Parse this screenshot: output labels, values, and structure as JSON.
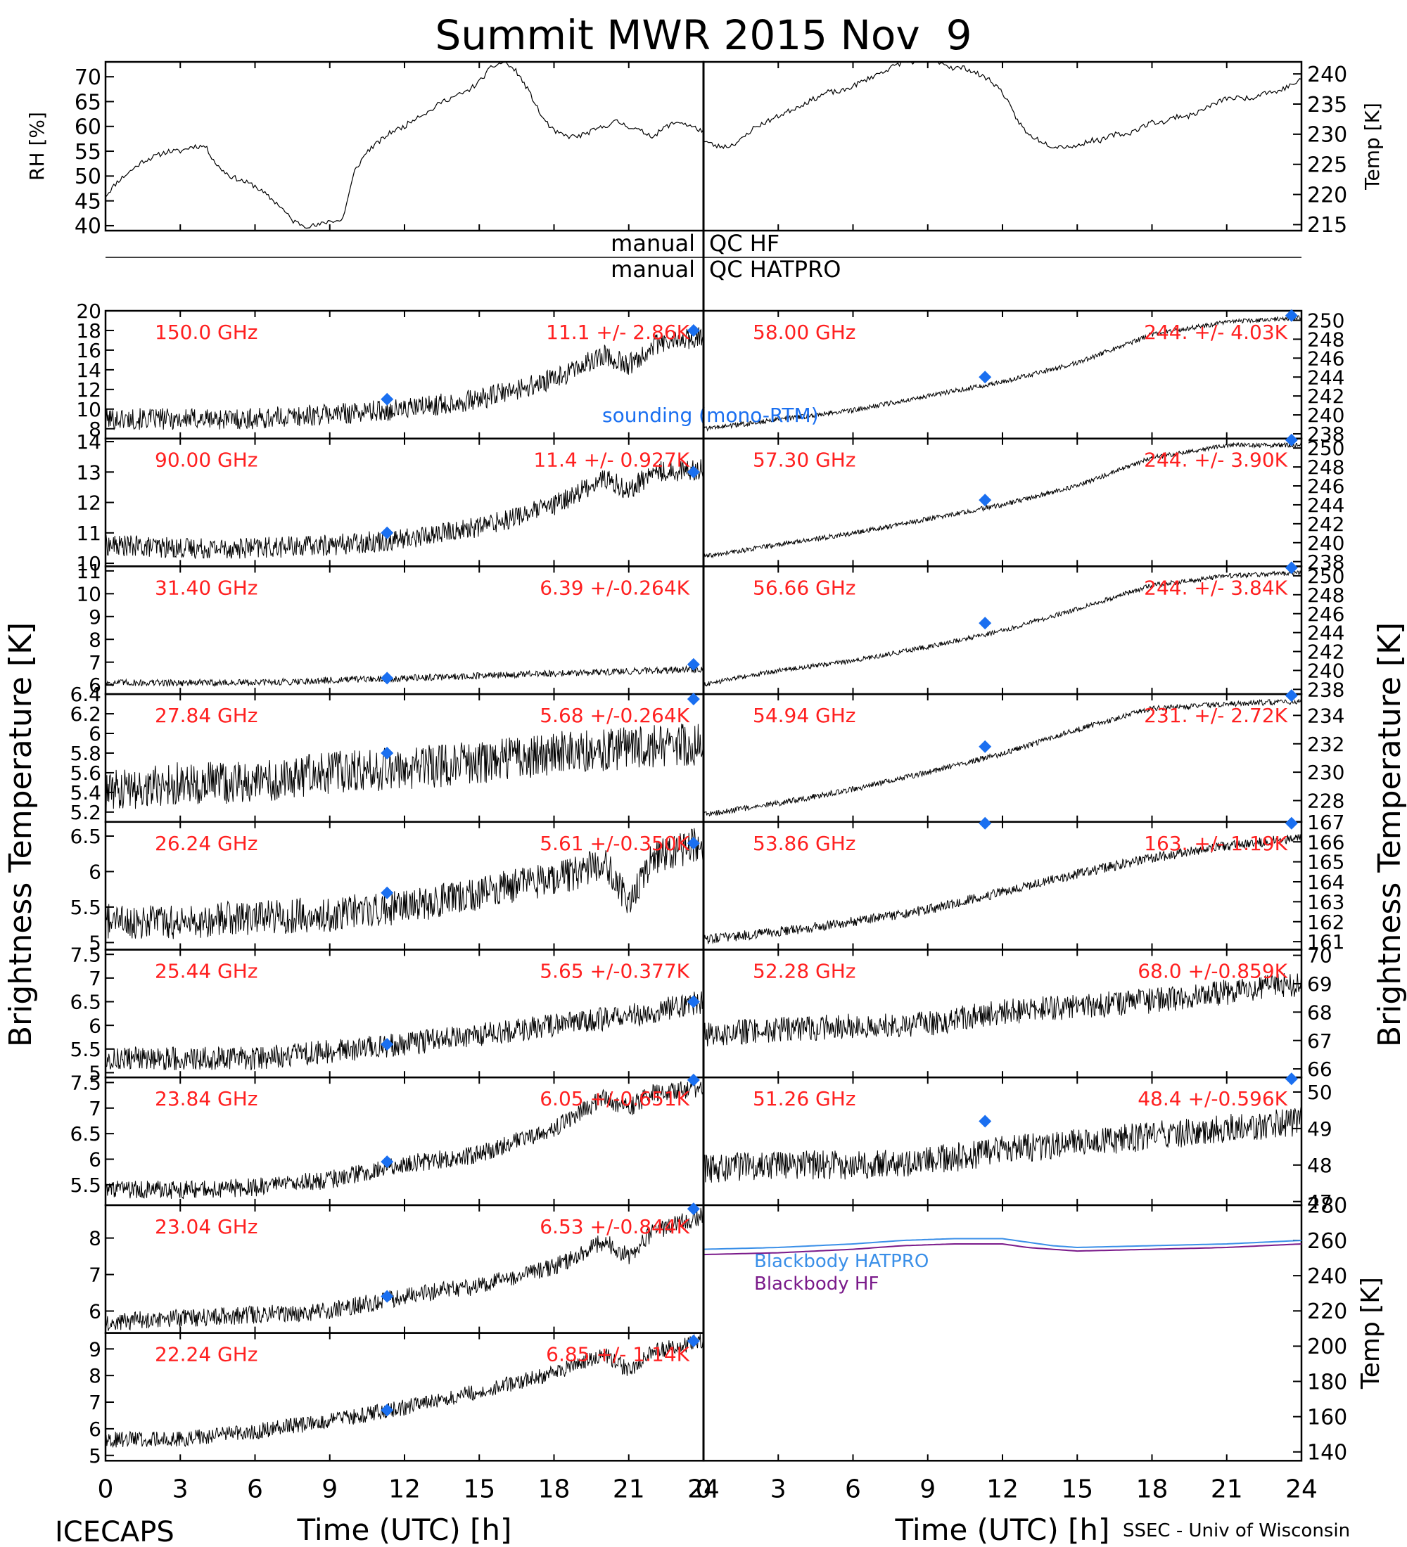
{
  "figure": {
    "title": "Summit MWR 2015 Nov  9",
    "footer_left": "ICECAPS",
    "footer_right": "SSEC - Univ of Wisconsin",
    "xlabel": "Time (UTC) [h]",
    "left_ylabel": "Brightness Temperature [K]",
    "right_ylabel": "Brightness Temperature [K]",
    "x_ticks": [
      "0",
      "3",
      "6",
      "9",
      "12",
      "15",
      "18",
      "21",
      "24"
    ],
    "qc_label_manual": "manual",
    "qc_hf_label": "QC HF",
    "qc_hatpro_label": "QC HATPRO",
    "sounding_label": "sounding (mono-RTM)",
    "colors": {
      "annotation": "#ff2020",
      "sounding": "#1a6ff0",
      "blackbody_hatpro": "#3a8fe8",
      "blackbody_hf": "#7a1a8a",
      "data": "#000000"
    }
  },
  "chart_data": [
    {
      "id": "rh",
      "type": "line",
      "ylabel": "RH [%]",
      "ylim": [
        39,
        73
      ],
      "yticks": [
        40,
        45,
        50,
        55,
        60,
        65,
        70
      ],
      "xlim": [
        0,
        24
      ],
      "series": [
        {
          "x": [
            0,
            0.5,
            1,
            1.5,
            2,
            2.5,
            3,
            3.5,
            4,
            4.5,
            5,
            5.5,
            6,
            6.5,
            7,
            7.5,
            8,
            8.5,
            9,
            9.5,
            10,
            10.5,
            11,
            11.5,
            12,
            12.5,
            13,
            13.5,
            14,
            14.5,
            15,
            15.5,
            16,
            16.5,
            17,
            17.5,
            18,
            18.5,
            19,
            19.5,
            20,
            20.5,
            21,
            21.5,
            22,
            22.5,
            23,
            23.5,
            24
          ],
          "values": [
            46,
            49,
            51,
            53,
            54,
            55,
            55,
            56,
            56,
            52,
            50,
            49,
            48,
            46,
            44,
            41,
            40,
            40,
            41,
            41,
            51,
            55,
            57,
            59,
            60,
            62,
            63,
            65,
            66,
            67,
            69,
            72,
            73,
            71,
            67,
            62,
            59,
            58,
            58,
            59,
            60,
            61,
            60,
            59,
            58,
            60,
            61,
            60,
            59
          ]
        }
      ]
    },
    {
      "id": "temp",
      "type": "line",
      "ylabel": "Temp [K]",
      "ylim": [
        214,
        242
      ],
      "yticks": [
        215,
        220,
        225,
        230,
        235,
        240
      ],
      "xlim": [
        0,
        24
      ],
      "series": [
        {
          "x": [
            0,
            0.5,
            1,
            1.5,
            2,
            2.5,
            3,
            3.5,
            4,
            4.5,
            5,
            5.5,
            6,
            6.5,
            7,
            7.5,
            8,
            8.5,
            9,
            9.5,
            10,
            10.5,
            11,
            11.5,
            12,
            12.5,
            13,
            13.5,
            14,
            14.5,
            15,
            15.5,
            16,
            16.5,
            17,
            17.5,
            18,
            18.5,
            19,
            19.5,
            20,
            20.5,
            21,
            21.5,
            22,
            22.5,
            23,
            23.5,
            24
          ],
          "values": [
            229,
            228,
            228,
            229,
            231,
            232,
            233,
            234,
            235,
            236,
            237,
            237,
            238,
            239,
            240,
            241,
            242,
            242,
            242,
            242,
            241,
            241,
            240,
            239,
            237,
            233,
            230,
            229,
            228,
            228,
            228,
            229,
            229,
            230,
            230,
            231,
            232,
            232,
            233,
            233,
            234,
            235,
            236,
            236,
            236,
            237,
            237,
            238,
            239
          ]
        }
      ]
    },
    {
      "id": "ch150",
      "type": "line",
      "label": "150.0 GHz",
      "stats": "11.1 +/- 2.86K",
      "ylim": [
        7,
        20
      ],
      "yticks": [
        8,
        10,
        12,
        14,
        16,
        18,
        20
      ],
      "xlim": [
        0,
        24
      ],
      "noise": 1.1,
      "x": [
        0,
        3,
        6,
        9,
        12,
        15,
        18,
        20,
        21,
        22,
        24
      ],
      "values": [
        9,
        9,
        9,
        9.5,
        10,
        11,
        13,
        15.5,
        14.5,
        16.5,
        17.5
      ],
      "sounding": [
        [
          11.3,
          11
        ],
        [
          23.6,
          18
        ]
      ]
    },
    {
      "id": "ch90",
      "type": "line",
      "label": "90.00 GHz",
      "stats": "11.4 +/- 0.927K",
      "ylim": [
        9.9,
        14.1
      ],
      "yticks": [
        10,
        11,
        12,
        13,
        14
      ],
      "xlim": [
        0,
        24
      ],
      "noise": 0.35,
      "x": [
        0,
        3,
        6,
        9,
        12,
        15,
        18,
        20,
        21,
        22,
        24
      ],
      "values": [
        10.6,
        10.5,
        10.5,
        10.6,
        10.8,
        11.2,
        11.9,
        12.8,
        12.4,
        13,
        13.1
      ],
      "sounding": [
        [
          11.3,
          11
        ],
        [
          23.6,
          13
        ]
      ]
    },
    {
      "id": "ch31",
      "type": "line",
      "label": "31.40 GHz",
      "stats": "6.39 +/-0.264K",
      "ylim": [
        5.6,
        11.2
      ],
      "yticks": [
        6,
        7,
        8,
        9,
        10,
        11
      ],
      "xlim": [
        0,
        24
      ],
      "noise": 0.15,
      "x": [
        0,
        6,
        12,
        18,
        21,
        24
      ],
      "values": [
        6.1,
        6.1,
        6.3,
        6.5,
        6.6,
        6.7
      ],
      "sounding": [
        [
          11.3,
          6.3
        ],
        [
          23.6,
          6.9
        ]
      ]
    },
    {
      "id": "ch27",
      "type": "line",
      "label": "27.84 GHz",
      "stats": "5.68 +/-0.264K",
      "ylim": [
        5.1,
        6.4
      ],
      "yticks": [
        5.2,
        5.4,
        5.6,
        5.8,
        6.0,
        6.2,
        6.4
      ],
      "xlim": [
        0,
        24
      ],
      "noise": 0.22,
      "x": [
        0,
        3,
        6,
        9,
        12,
        15,
        18,
        21,
        24
      ],
      "values": [
        5.4,
        5.5,
        5.5,
        5.6,
        5.65,
        5.7,
        5.8,
        5.85,
        5.9
      ],
      "sounding": [
        [
          11.3,
          5.8
        ],
        [
          23.6,
          6.35
        ]
      ]
    },
    {
      "id": "ch26",
      "type": "line",
      "label": "26.24 GHz",
      "stats": "5.61 +/-0.350K",
      "ylim": [
        4.9,
        6.7
      ],
      "yticks": [
        5.0,
        5.5,
        6.0,
        6.5
      ],
      "xlim": [
        0,
        24
      ],
      "noise": 0.25,
      "x": [
        0,
        3,
        6,
        9,
        12,
        15,
        18,
        20,
        21,
        22,
        24
      ],
      "values": [
        5.3,
        5.3,
        5.35,
        5.4,
        5.5,
        5.7,
        5.9,
        6.1,
        5.6,
        6.2,
        6.4
      ],
      "sounding": [
        [
          11.3,
          5.7
        ],
        [
          23.6,
          6.4
        ]
      ]
    },
    {
      "id": "ch25",
      "type": "line",
      "label": "25.44 GHz",
      "stats": "5.65 +/-0.377K",
      "ylim": [
        4.9,
        7.6
      ],
      "yticks": [
        5.0,
        5.5,
        6.0,
        6.5,
        7.0,
        7.5
      ],
      "xlim": [
        0,
        24
      ],
      "noise": 0.25,
      "x": [
        0,
        3,
        6,
        9,
        12,
        15,
        18,
        21,
        24
      ],
      "values": [
        5.3,
        5.3,
        5.3,
        5.45,
        5.6,
        5.8,
        6.0,
        6.2,
        6.5
      ],
      "sounding": [
        [
          11.3,
          5.6
        ],
        [
          23.6,
          6.5
        ]
      ]
    },
    {
      "id": "ch23_84",
      "type": "line",
      "label": "23.84 GHz",
      "stats": "6.05 +/-0.651K",
      "ylim": [
        5.1,
        7.6
      ],
      "yticks": [
        5.5,
        6.0,
        6.5,
        7.0,
        7.5
      ],
      "xlim": [
        0,
        24
      ],
      "noise": 0.18,
      "x": [
        0,
        3,
        6,
        9,
        12,
        15,
        18,
        20,
        21,
        22,
        24
      ],
      "values": [
        5.4,
        5.4,
        5.45,
        5.6,
        5.9,
        6.1,
        6.6,
        7.2,
        7.0,
        7.3,
        7.4
      ],
      "sounding": [
        [
          11.3,
          5.95
        ],
        [
          23.6,
          7.55
        ]
      ]
    },
    {
      "id": "ch23_04",
      "type": "line",
      "label": "23.04 GHz",
      "stats": "6.53 +/-0.844K",
      "ylim": [
        5.4,
        8.9
      ],
      "yticks": [
        6,
        7,
        8
      ],
      "xlim": [
        0,
        24
      ],
      "noise": 0.25,
      "x": [
        0,
        3,
        6,
        9,
        12,
        15,
        18,
        20,
        21,
        22,
        24
      ],
      "values": [
        5.7,
        5.8,
        5.9,
        6.0,
        6.4,
        6.7,
        7.2,
        7.9,
        7.5,
        8.2,
        8.6
      ],
      "sounding": [
        [
          11.3,
          6.4
        ],
        [
          23.6,
          8.8
        ]
      ]
    },
    {
      "id": "ch22",
      "type": "line",
      "label": "22.24 GHz",
      "stats": "6.85 +/- 1.14K",
      "ylim": [
        4.8,
        9.6
      ],
      "yticks": [
        5,
        6,
        7,
        8,
        9
      ],
      "xlim": [
        0,
        24
      ],
      "noise": 0.3,
      "x": [
        0,
        3,
        6,
        9,
        12,
        15,
        18,
        20,
        21,
        22,
        24
      ],
      "values": [
        5.6,
        5.6,
        5.9,
        6.3,
        6.8,
        7.4,
        8.1,
        8.8,
        8.2,
        8.9,
        9.3
      ],
      "sounding": [
        [
          11.3,
          6.7
        ],
        [
          23.6,
          9.3
        ]
      ]
    },
    {
      "id": "ch58",
      "type": "line",
      "label": "58.00 GHz",
      "stats": "244. +/- 4.03K",
      "ylim": [
        237.5,
        251
      ],
      "yticks": [
        238,
        240,
        242,
        244,
        246,
        248,
        250
      ],
      "xlim": [
        0,
        24
      ],
      "noise": 0.25,
      "x": [
        0,
        3,
        6,
        9,
        12,
        15,
        18,
        21,
        24
      ],
      "values": [
        238.5,
        239.5,
        240.5,
        242,
        243.5,
        245.5,
        248.5,
        249.8,
        250.3
      ],
      "sounding": [
        [
          11.3,
          244
        ],
        [
          23.6,
          250.5
        ]
      ]
    },
    {
      "id": "ch57",
      "type": "line",
      "label": "57.30 GHz",
      "stats": "244. +/- 3.90K",
      "ylim": [
        237.5,
        251
      ],
      "yticks": [
        238,
        240,
        242,
        244,
        246,
        248,
        250
      ],
      "xlim": [
        0,
        24
      ],
      "noise": 0.25,
      "x": [
        0,
        3,
        6,
        9,
        12,
        15,
        18,
        21,
        24
      ],
      "values": [
        238.5,
        239.8,
        241,
        242.5,
        244,
        246,
        249,
        250.3,
        250.3
      ],
      "sounding": [
        [
          11.3,
          244.5
        ],
        [
          23.6,
          251
        ]
      ]
    },
    {
      "id": "ch56",
      "type": "line",
      "label": "56.66 GHz",
      "stats": "244. +/- 3.84K",
      "ylim": [
        237.5,
        251
      ],
      "yticks": [
        238,
        240,
        242,
        244,
        246,
        248,
        250
      ],
      "xlim": [
        0,
        24
      ],
      "noise": 0.25,
      "x": [
        0,
        3,
        6,
        9,
        12,
        15,
        18,
        21,
        24
      ],
      "values": [
        238.5,
        240,
        241,
        242.5,
        244.2,
        246.5,
        249,
        250,
        250.3
      ],
      "sounding": [
        [
          11.3,
          245
        ],
        [
          23.6,
          251
        ]
      ]
    },
    {
      "id": "ch54",
      "type": "line",
      "label": "54.94 GHz",
      "stats": "231. +/- 2.72K",
      "ylim": [
        226.5,
        235.5
      ],
      "yticks": [
        228,
        230,
        232,
        234
      ],
      "xlim": [
        0,
        24
      ],
      "noise": 0.2,
      "x": [
        0,
        3,
        6,
        9,
        12,
        15,
        18,
        21,
        24
      ],
      "values": [
        227,
        227.8,
        228.8,
        230,
        231.3,
        233,
        234.5,
        234.8,
        235
      ],
      "sounding": [
        [
          11.3,
          231.8
        ],
        [
          23.6,
          235.5
        ]
      ]
    },
    {
      "id": "ch53",
      "type": "line",
      "label": "53.86 GHz",
      "stats": "163. +/- 1.19K",
      "ylim": [
        160.6,
        167
      ],
      "yticks": [
        161,
        162,
        163,
        164,
        165,
        166,
        167
      ],
      "xlim": [
        0,
        24
      ],
      "noise": 0.25,
      "x": [
        0,
        3,
        6,
        9,
        12,
        15,
        18,
        21,
        24
      ],
      "values": [
        161.1,
        161.5,
        162,
        162.6,
        163.5,
        164.4,
        165.2,
        165.8,
        166.2
      ],
      "sounding": [
        [
          11.3,
          167
        ],
        [
          23.6,
          167.2
        ]
      ]
    },
    {
      "id": "ch52",
      "type": "line",
      "label": "52.28 GHz",
      "stats": "68.0 +/-0.859K",
      "ylim": [
        65.7,
        70.2
      ],
      "yticks": [
        66,
        67,
        68,
        69,
        70
      ],
      "xlim": [
        0,
        24
      ],
      "noise": 0.45,
      "x": [
        0,
        3,
        6,
        9,
        12,
        15,
        18,
        21,
        24
      ],
      "values": [
        67.2,
        67.4,
        67.5,
        67.6,
        68.0,
        68.2,
        68.4,
        68.7,
        69.0
      ],
      "sounding": []
    },
    {
      "id": "ch51",
      "type": "line",
      "label": "51.26 GHz",
      "stats": "48.4 +/-0.596K",
      "ylim": [
        46.9,
        50.4
      ],
      "yticks": [
        47,
        48,
        49,
        50
      ],
      "xlim": [
        0,
        24
      ],
      "noise": 0.4,
      "x": [
        0,
        3,
        6,
        9,
        12,
        15,
        18,
        21,
        24
      ],
      "values": [
        47.9,
        48.0,
        48.0,
        48.1,
        48.4,
        48.6,
        48.8,
        49.0,
        49.2
      ],
      "sounding": [
        [
          11.3,
          49.2
        ],
        [
          23.6,
          50.4
        ]
      ]
    },
    {
      "id": "blackbody",
      "type": "line",
      "ylabel": "Temp [K]",
      "ylim": [
        135,
        280
      ],
      "yticks": [
        140,
        160,
        180,
        200,
        220,
        240,
        260,
        280
      ],
      "xlim": [
        0,
        24
      ],
      "series": [
        {
          "name": "Blackbody HATPRO",
          "x": [
            0,
            3,
            6,
            8,
            10,
            12,
            13,
            14,
            15,
            18,
            21,
            24
          ],
          "values": [
            255,
            256,
            258,
            260,
            261,
            261,
            259,
            257,
            256,
            257,
            258,
            260
          ]
        },
        {
          "name": "Blackbody HF",
          "x": [
            0,
            3,
            6,
            8,
            10,
            12,
            13,
            14,
            15,
            18,
            21,
            24
          ],
          "values": [
            252,
            253,
            255,
            257,
            258,
            258,
            256,
            255,
            254,
            255,
            256,
            258
          ]
        }
      ]
    }
  ]
}
